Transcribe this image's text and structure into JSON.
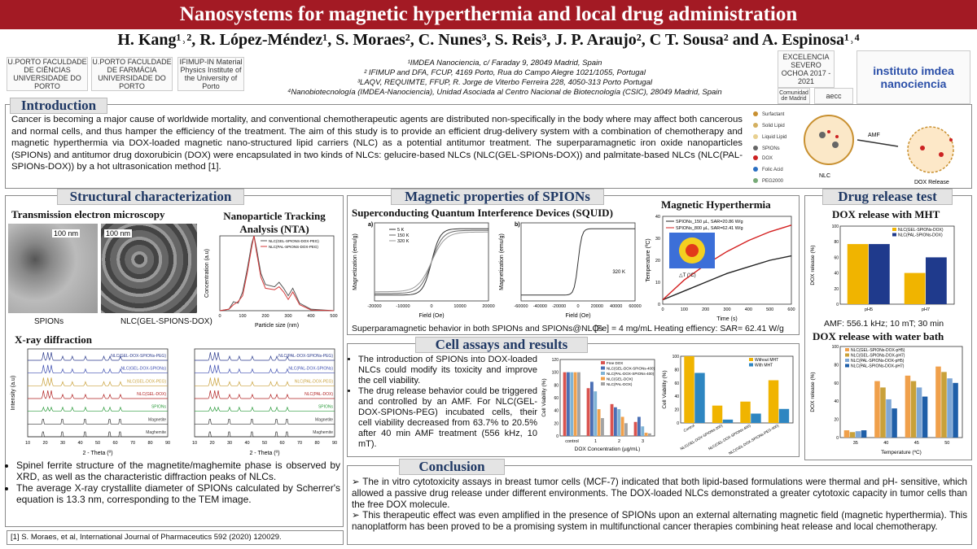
{
  "title": "Nanosystems for magnetic hyperthermia and local drug administration",
  "authors": "H. Kang¹˒², R. López-Méndez¹, S. Moraes², C. Nunes³, S. Reis³, J. P. Araujo², C T. Sousa² and A. Espinosa¹˒⁴",
  "affiliations": [
    "¹IMDEA Nanociencia, c/ Faraday 9, 28049 Madrid, Spain",
    "² IFIMUP and DFA, FCUP, 4169 Porto, Rua do Campo Alegre 1021/1055, Portugal",
    "³LAQV, REQUIMTE, FFUP, R. Jorge de Viterbo Ferreira 228, 4050-313 Porto Portugal",
    "⁴Nanobiotecnología (IMDEA-Nanociencia), Unidad Asociada al Centro Nacional de Biotecnología (CSIC), 28049 Madrid, Spain"
  ],
  "logos": {
    "uporto_fc": "U.PORTO FACULDADE DE CIÊNCIAS UNIVERSIDADE DO PORTO",
    "uporto_ff": "U.PORTO FACULDADE DE FARMÁCIA UNIVERSIDADE DO PORTO",
    "ifimup": "IFIMUP-IN Material Physics Institute of the University of Porto",
    "severo": "EXCELENCIA SEVERO OCHOA 2017 - 2021",
    "comunidad": "Comunidad de Madrid",
    "aecc": "aecc",
    "imdea": "instituto imdea nanociencia"
  },
  "introduction": {
    "heading": "Introduction",
    "text": "Cancer is becoming a major cause of worldwide mortality, and conventional chemotherapeutic agents are distributed non-specifically in the body where may affect both cancerous and normal cells, and thus hamper the efficiency of the treatment. The aim of this study is to provide an efficient drug-delivery system with a combination of chemotherapy and magnetic hyperthermia via DOX-loaded magnetic nano-structured lipid carriers (NLC) as a potential antitumor treatment. The superparamagnetic iron oxide nanoparticles (SPIONs) and antitumor drug doxorubicin (DOX) were encapsulated in two kinds of NLCs: gelucire-based NLCs (NLC(GEL-SPIONs-DOX)) and palmitate-based NLCs (NLC(PAL-SPIONs-DOX)) by a hot ultrasonication method [1].",
    "schematic_labels": [
      "Surfactant",
      "Solid Lipid",
      "Liquid Lipid",
      "SPIONs",
      "DOX",
      "Folic Acid",
      "PEG2000",
      "AMF",
      "NLC",
      "DOX Release"
    ]
  },
  "structural": {
    "heading": "Structural characterization",
    "tem_title": "Transmission electron microscopy",
    "scale": "100 nm",
    "cap_spions": "SPIONs",
    "cap_nlc": "NLC(GEL-SPIONS-DOX)",
    "nta_title": "Nanoparticle Tracking Analysis (NTA)",
    "xrd_title": "X-ray diffraction",
    "bullets": [
      "Spinel ferrite structure of the magnetite/maghemite phase is observed by XRD, as well as the characteristic diffraction peaks of NLCs.",
      "The average X-ray crystallite diameter of SPIONs calculated by Scherrer's equation is 13.3 nm, corresponding to the TEM image."
    ],
    "reference": "[1] S. Moraes, et al, International Journal of Pharmaceutics 592 (2020) 120029."
  },
  "magnetic": {
    "heading": "Magnetic properties of SPIONs",
    "squid_title": "Superconducting Quantum Interference Devices (SQUID)",
    "hyper_title": "Magnetic Hyperthermia",
    "caption": "Superparamagnetic behavior in both SPIONs and SPIONs@NLCs",
    "hyper_caption": "[Fe] = 4 mg/mL  Heating effiency: SAR= 62.41 W/g",
    "thermal_label": "△T (°C)"
  },
  "cell": {
    "heading": "Cell assays and results",
    "bullets": [
      "The introduction of SPIONs into DOX-loaded NLCs could modify its toxicity and improve the cell viability.",
      "The drug release behavior could be triggered and controlled by an AMF. For NLC(GEL-DOX-SPIONs-PEG) incubated cells, their cell viability decreased from 63.7% to 20.5% after 40 min AMF treatment (556 kHz, 10 mT)."
    ]
  },
  "drug": {
    "heading": "Drug release test",
    "mht_title": "DOX release with MHT",
    "mht_caption": "AMF: 556.1 kHz; 10 mT; 30 min",
    "bath_title": "DOX release with water bath"
  },
  "conclusion": {
    "heading": "Conclusion",
    "points": [
      "The in vitro cytotoxicity assays in breast tumor cells (MCF-7) indicated that both lipid-based formulations were thermal and pH- sensitive, which allowed a passive drug release under different environments. The DOX-loaded NLCs demonstrated a greater cytotoxic capacity in tumor cells than the free DOX molecule.",
      "This therapeutic effect was even amplified in the presence of SPIONs upon an external alternating magnetic field (magnetic hyperthermia). This nanoplatform has been proved to be a promising system in multifunctional cancer therapies combining heat release and local chemotherapy."
    ]
  },
  "chart_data": [
    {
      "id": "nta",
      "type": "line",
      "xlabel": "Particle size (nm)",
      "ylabel": "Concentration (a.u)",
      "xlim": [
        0,
        500
      ],
      "ylim": [
        0,
        1
      ],
      "series": [
        {
          "name": "NLC(GEL-SPIONS-DOX-PEG)",
          "color": "#555555",
          "x": [
            0,
            40,
            60,
            80,
            100,
            120,
            140,
            150,
            160,
            180,
            200,
            240,
            260,
            280,
            300,
            320,
            350,
            400,
            500
          ],
          "y": [
            0,
            0.02,
            0.12,
            0.1,
            0.25,
            0.55,
            0.9,
            1.0,
            0.85,
            0.5,
            0.35,
            0.32,
            0.38,
            0.3,
            0.2,
            0.3,
            0.1,
            0.02,
            0
          ]
        },
        {
          "name": "NLC(PAL-SPIONS-DOX-PEG)",
          "color": "#d43a3a",
          "x": [
            0,
            40,
            60,
            80,
            100,
            120,
            140,
            150,
            160,
            180,
            200,
            240,
            260,
            280,
            300,
            320,
            350,
            400,
            500
          ],
          "y": [
            0,
            0.02,
            0.08,
            0.12,
            0.2,
            0.5,
            0.85,
            1.0,
            0.8,
            0.45,
            0.3,
            0.28,
            0.32,
            0.25,
            0.15,
            0.25,
            0.08,
            0.01,
            0
          ]
        }
      ]
    },
    {
      "id": "xrd1",
      "type": "line",
      "xlabel": "2 - Theta (º)",
      "ylabel": "Intensity (a.u)",
      "xlim": [
        10,
        90
      ],
      "series": [
        {
          "name": "NLC(GEL-DOX-SPIONs-PEG)",
          "color": "#2b3a8c"
        },
        {
          "name": "NLC(GEL-DOX-SPIONs)",
          "color": "#3c4db0"
        },
        {
          "name": "NLC(GEL-DOX-PEG)",
          "color": "#c9a13a"
        },
        {
          "name": "NLC(GEL-DOX)",
          "color": "#b02020"
        },
        {
          "name": "SPIONs",
          "color": "#2a9a3a"
        },
        {
          "name": "Magnetite",
          "color": "#333333"
        },
        {
          "name": "Maghemite",
          "color": "#333333"
        }
      ]
    },
    {
      "id": "xrd2",
      "type": "line",
      "xlabel": "2 - Theta (º)",
      "ylabel": "",
      "xlim": [
        10,
        90
      ],
      "series": [
        {
          "name": "NLC(PAL-DOX-SPIONs-PEG)",
          "color": "#2b3a8c"
        },
        {
          "name": "NLC(PAL-DOX-SPIONs)",
          "color": "#3c4db0"
        },
        {
          "name": "NLC(PAL-DOX-PEG)",
          "color": "#c9a13a"
        },
        {
          "name": "NLC(PAL-DOX)",
          "color": "#b02020"
        },
        {
          "name": "SPIONs",
          "color": "#2a9a3a"
        },
        {
          "name": "Magnetite",
          "color": "#333333"
        },
        {
          "name": "Maghemite",
          "color": "#333333"
        }
      ]
    },
    {
      "id": "squid_a",
      "type": "line",
      "xlabel": "Field (Oe)",
      "ylabel": "Magnetization (emu/g)",
      "xlim": [
        -20000,
        20000
      ],
      "ylim": [
        -80,
        80
      ],
      "series": [
        {
          "name": "5 K"
        },
        {
          "name": "150 K"
        },
        {
          "name": "320 K"
        }
      ]
    },
    {
      "id": "squid_b",
      "type": "line",
      "xlabel": "Field (Oe)",
      "ylabel": "Magnetization (emu/g)",
      "xlim": [
        -60000,
        60000
      ],
      "ylim": [
        -1,
        1
      ],
      "annotation": "320 K",
      "series": [
        {
          "name": "320 K"
        }
      ]
    },
    {
      "id": "hyperthermia",
      "type": "line",
      "xlabel": "Time (s)",
      "ylabel": "Temperature (ºC)",
      "xlim": [
        0,
        600
      ],
      "ylim": [
        0,
        40
      ],
      "series": [
        {
          "name": "SPIONs_150 µL, SAR=20.86 W/g",
          "color": "#222222",
          "x": [
            0,
            100,
            200,
            300,
            400,
            500,
            600
          ],
          "y": [
            2,
            6,
            10,
            14,
            17,
            20,
            22
          ]
        },
        {
          "name": "SPIONs_800 µL, SAR=62.41 W/g",
          "color": "#d42020",
          "x": [
            0,
            100,
            200,
            300,
            400,
            500,
            600
          ],
          "y": [
            2,
            11,
            18,
            24,
            29,
            33,
            36
          ]
        }
      ]
    },
    {
      "id": "cell_viability_conc",
      "type": "bar",
      "xlabel": "DOX Concentration (µg/mL)",
      "ylabel": "Cell Viability (%)",
      "categories": [
        "control",
        "1",
        "2",
        "3"
      ],
      "ylim": [
        0,
        120
      ],
      "series": [
        {
          "name": "Free DOX",
          "color": "#d9534f",
          "values": [
            100,
            75,
            50,
            22
          ]
        },
        {
          "name": "NLC(GEL-DOX-SPIONs-400)",
          "color": "#4a6fb5",
          "values": [
            100,
            85,
            45,
            30
          ]
        },
        {
          "name": "NLC(PAL-DOX-SPIONs-400)",
          "color": "#7fb3d5",
          "values": [
            100,
            70,
            42,
            15
          ]
        },
        {
          "name": "NLC(GEL-DOX)",
          "color": "#f0a04b",
          "values": [
            100,
            42,
            30,
            5
          ]
        },
        {
          "name": "NLC(PAL-DOX)",
          "color": "#a3a3a3",
          "values": [
            100,
            28,
            20,
            4
          ]
        }
      ]
    },
    {
      "id": "cell_viability_mht",
      "type": "bar",
      "ylabel": "Cell Viability (%)",
      "categories": [
        "Control",
        "NLC(GEL-DOX-SPIONs-200)",
        "NLC(GEL-DOX-SPIONs-400)",
        "NLC(GEL-DOX-SPIONs-PEG-400)"
      ],
      "ylim": [
        0,
        100
      ],
      "series": [
        {
          "name": "Without MHT",
          "color": "#f0b400",
          "values": [
            100,
            26,
            32,
            64
          ]
        },
        {
          "name": "With MHT",
          "color": "#2e86c1",
          "values": [
            75,
            5,
            14,
            21
          ]
        }
      ]
    },
    {
      "id": "dox_mht",
      "type": "bar",
      "ylabel": "DOX release (%)",
      "categories": [
        "pH5",
        "pH7"
      ],
      "ylim": [
        0,
        100
      ],
      "series": [
        {
          "name": "NLC(GEL-SPIONs-DOX)",
          "color": "#f0b400",
          "values": [
            77,
            40
          ]
        },
        {
          "name": "NLC(PAL-SPIONs-DOX)",
          "color": "#1f3a8c",
          "values": [
            77,
            60
          ]
        }
      ]
    },
    {
      "id": "dox_bath",
      "type": "bar",
      "xlabel": "Temperature (ºC)",
      "ylabel": "DOX release (%)",
      "categories": [
        "35",
        "40",
        "45",
        "50"
      ],
      "ylim": [
        0,
        100
      ],
      "series": [
        {
          "name": "NLC(GEL-SPIONs-DOX-pH5)",
          "color": "#f0a04b",
          "values": [
            8,
            62,
            68,
            78
          ]
        },
        {
          "name": "NLC(GEL-SPIONs-DOX-pH7)",
          "color": "#c9a13a",
          "values": [
            6,
            55,
            62,
            72
          ]
        },
        {
          "name": "NLC(PAL-SPIONs-DOX-pH5)",
          "color": "#7fa7d5",
          "values": [
            7,
            42,
            55,
            65
          ]
        },
        {
          "name": "NLC(PAL-SPIONs-DOX-pH7)",
          "color": "#1f5fa8",
          "values": [
            8,
            32,
            45,
            60
          ]
        }
      ]
    }
  ]
}
